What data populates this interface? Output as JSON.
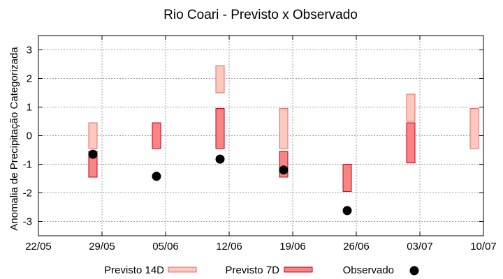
{
  "chart_data": {
    "type": "bar",
    "title": "Rio Coari - Previsto x Observado",
    "xlabel": "",
    "ylabel": "Anomalia de Precipitação Categorizada",
    "ylim": [
      -3.5,
      3.5
    ],
    "yticks": [
      -3,
      -2,
      -1,
      0,
      1,
      2,
      3
    ],
    "xlim": [
      "22/05",
      "10/07"
    ],
    "xticks": [
      "22/05",
      "29/05",
      "05/06",
      "12/06",
      "19/06",
      "26/06",
      "03/07",
      "10/07"
    ],
    "grid": true,
    "legend_position": "bottom",
    "series": [
      {
        "name": "Previsto 14D",
        "kind": "range",
        "fill": "#fbc9bd",
        "stroke": "#e76a6a",
        "values": [
          {
            "x": "28/05",
            "low": -0.45,
            "high": 0.45
          },
          {
            "x": "11/06",
            "low": 1.5,
            "high": 2.45
          },
          {
            "x": "18/06",
            "low": -0.45,
            "high": 0.95
          },
          {
            "x": "02/07",
            "low": 0.5,
            "high": 1.45
          },
          {
            "x": "09/07",
            "low": -0.45,
            "high": 0.95
          }
        ]
      },
      {
        "name": "Previsto 7D",
        "kind": "range",
        "fill": "#fa8484",
        "stroke": "#c0001a",
        "values": [
          {
            "x": "28/05",
            "low": -1.45,
            "high": -0.55
          },
          {
            "x": "04/06",
            "low": -0.45,
            "high": 0.45
          },
          {
            "x": "11/06",
            "low": -0.45,
            "high": 0.95
          },
          {
            "x": "18/06",
            "low": -1.45,
            "high": -0.55
          },
          {
            "x": "25/06",
            "low": -1.95,
            "high": -1.0
          },
          {
            "x": "02/07",
            "low": -0.95,
            "high": 0.45
          }
        ]
      },
      {
        "name": "Observado",
        "kind": "point",
        "color": "#000000",
        "values": [
          {
            "x": "28/05",
            "y": -0.65
          },
          {
            "x": "04/06",
            "y": -1.42
          },
          {
            "x": "11/06",
            "y": -0.82
          },
          {
            "x": "18/06",
            "y": -1.2
          },
          {
            "x": "25/06",
            "y": -2.62
          }
        ]
      }
    ]
  }
}
